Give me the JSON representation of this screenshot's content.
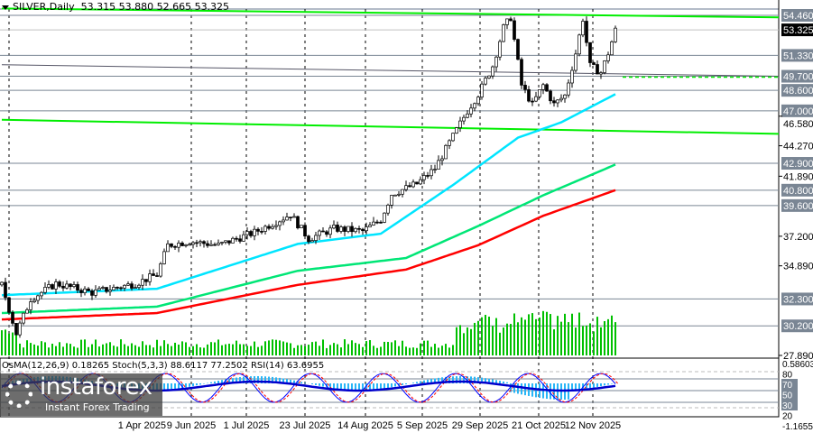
{
  "header": {
    "symbol_label": "SILVER,Daily",
    "ohlc": "53.315 53.880 52.665 53.325"
  },
  "oscillator": {
    "label": "OsMA(12,26,9) 0.18265  Stoch(5,3,3) 88.6117 77.2502  RSI(14) 63.6955",
    "scale": [
      "0.58603",
      "80",
      "70",
      "50",
      "30",
      "20",
      "-1.16551"
    ]
  },
  "watermark": {
    "brand": "instaforex",
    "tagline": "Instant Forex Trading"
  },
  "colors": {
    "candle": "#000000",
    "ma_fast": "#00e5ff",
    "ma_mid": "#00e676",
    "ma_slow": "#ff0000",
    "trendline": "#00ee00",
    "level_tag": "#7a8694",
    "volume": "#00c000"
  },
  "chart_data": {
    "type": "candlestick",
    "current_price": "53.325",
    "ylim": [
      27.89,
      54.46
    ],
    "y_ticks": [
      "54.460",
      "53.325",
      "51.330",
      "49.700",
      "48.600",
      "47.000",
      "46.580",
      "44.270",
      "42.900",
      "41.890",
      "40.800",
      "39.600",
      "37.200",
      "34.890",
      "32.300",
      "30.200",
      "27.890"
    ],
    "levels": [
      "54.460",
      "51.330",
      "49.700",
      "48.600",
      "47.000",
      "42.900",
      "40.800",
      "39.600",
      "32.300",
      "30.200"
    ],
    "x_ticks": [
      "1 Apr 2025",
      "9 Jun 2025",
      "1 Jul 2025",
      "23 Jul 2025",
      "14 Aug 2025",
      "5 Sep 2025",
      "29 Sep 2025",
      "21 Oct 2025",
      "12 Nov 2025"
    ],
    "price_anchors": [
      [
        0,
        33.4
      ],
      [
        4,
        29.6
      ],
      [
        8,
        32.3
      ],
      [
        15,
        33.5
      ],
      [
        25,
        32.8
      ],
      [
        37,
        33.5
      ],
      [
        43,
        34.2
      ],
      [
        46,
        36.5
      ],
      [
        52,
        36.8
      ],
      [
        60,
        36.5
      ],
      [
        70,
        37.5
      ],
      [
        75,
        38.2
      ],
      [
        80,
        38.9
      ],
      [
        85,
        37.0
      ],
      [
        92,
        37.8
      ],
      [
        100,
        37.6
      ],
      [
        105,
        38.5
      ],
      [
        108,
        40.5
      ],
      [
        115,
        41.3
      ],
      [
        120,
        42.5
      ],
      [
        125,
        45.0
      ],
      [
        129,
        47.0
      ],
      [
        132,
        48.3
      ],
      [
        136,
        50.5
      ],
      [
        139,
        53.5
      ],
      [
        141,
        54.3
      ],
      [
        144,
        49.0
      ],
      [
        147,
        47.5
      ],
      [
        150,
        49.0
      ],
      [
        153,
        47.5
      ],
      [
        156,
        48.2
      ],
      [
        159,
        51.5
      ],
      [
        161,
        54.2
      ],
      [
        163,
        50.5
      ],
      [
        166,
        50.0
      ],
      [
        168,
        51.5
      ],
      [
        170,
        53.3
      ]
    ],
    "ma_fast": [
      [
        0,
        32.6
      ],
      [
        43,
        33.1
      ],
      [
        82,
        36.6
      ],
      [
        105,
        37.4
      ],
      [
        125,
        41.2
      ],
      [
        143,
        44.9
      ],
      [
        155,
        46.1
      ],
      [
        170,
        48.3
      ]
    ],
    "ma_mid": [
      [
        0,
        31.2
      ],
      [
        43,
        31.7
      ],
      [
        82,
        34.5
      ],
      [
        112,
        35.5
      ],
      [
        132,
        38.0
      ],
      [
        150,
        40.4
      ],
      [
        170,
        42.8
      ]
    ],
    "ma_slow": [
      [
        0,
        30.7
      ],
      [
        43,
        31.2
      ],
      [
        82,
        33.4
      ],
      [
        112,
        34.6
      ],
      [
        132,
        36.5
      ],
      [
        150,
        38.8
      ],
      [
        170,
        40.8
      ]
    ],
    "trendlines": [
      [
        [
          0,
          55.0
        ],
        [
          215,
          54.3
        ]
      ],
      [
        [
          0,
          50.6
        ],
        [
          165,
          49.7
        ]
      ],
      [
        [
          0,
          46.3
        ],
        [
          215,
          45.2
        ]
      ]
    ]
  }
}
